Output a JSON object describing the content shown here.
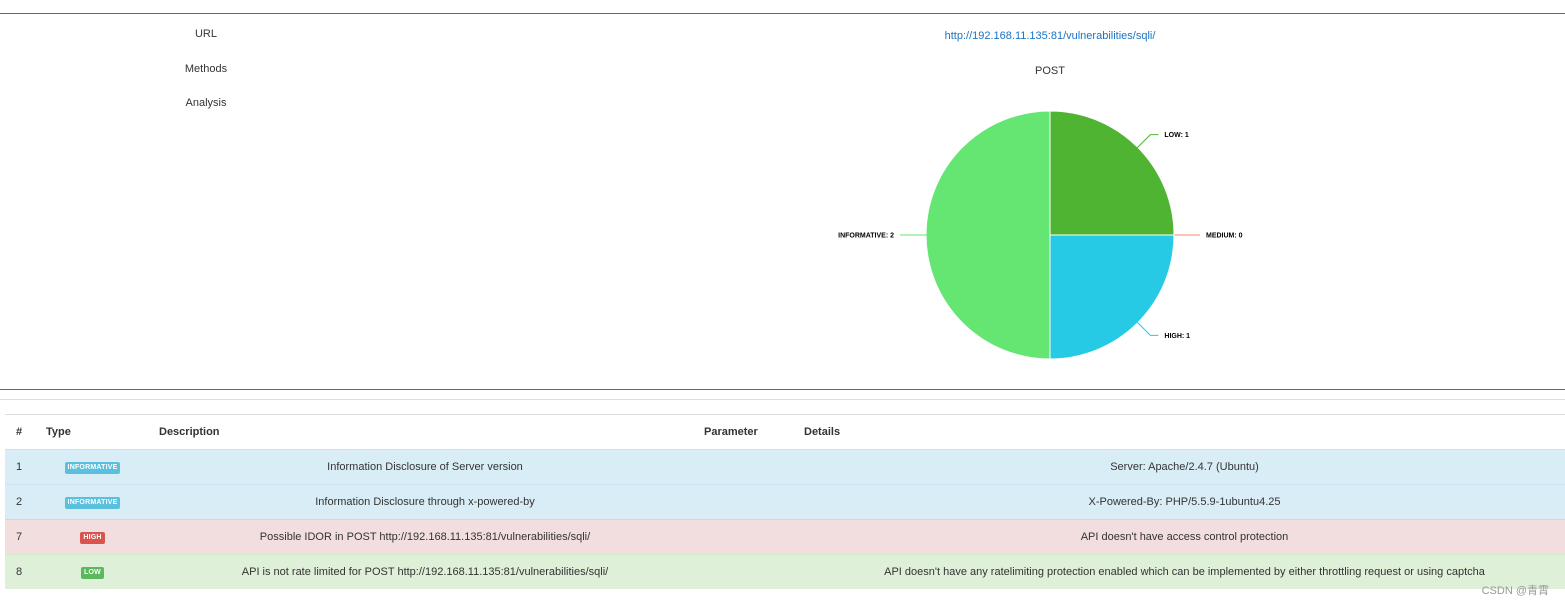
{
  "summary": {
    "labels": {
      "url": "URL",
      "methods": "Methods",
      "analysis": "Analysis"
    },
    "url": "http://192.168.11.135:81/vulnerabilities/sqli/",
    "method": "POST"
  },
  "chart_data": {
    "type": "pie",
    "slices": [
      {
        "label": "LOW",
        "value": 1,
        "color": "#4fb432"
      },
      {
        "label": "MEDIUM",
        "value": 0,
        "color": "#f38b70"
      },
      {
        "label": "HIGH",
        "value": 1,
        "color": "#27cae4"
      },
      {
        "label": "INFORMATIVE",
        "value": 2,
        "color": "#65e572"
      }
    ]
  },
  "table": {
    "headers": {
      "num": "#",
      "type": "Type",
      "description": "Description",
      "parameter": "Parameter",
      "details": "Details"
    },
    "rows": [
      {
        "num": "1",
        "type": "INFORMATIVE",
        "description": "Information Disclosure of Server version",
        "parameter": "",
        "details": "Server: Apache/2.4.7 (Ubuntu)"
      },
      {
        "num": "2",
        "type": "INFORMATIVE",
        "description": "Information Disclosure through x-powered-by",
        "parameter": "",
        "details": "X-Powered-By: PHP/5.5.9-1ubuntu4.25"
      },
      {
        "num": "7",
        "type": "HIGH",
        "description": "Possible IDOR in POST http://192.168.11.135:81/vulnerabilities/sqli/",
        "parameter": "",
        "details": "API doesn't have access control protection"
      },
      {
        "num": "8",
        "type": "LOW",
        "description": "API is not rate limited for POST http://192.168.11.135:81/vulnerabilities/sqli/",
        "parameter": "",
        "details": "API doesn't have any ratelimiting protection enabled which can be implemented by either throttling request or using captcha"
      }
    ]
  },
  "badge_colors": {
    "INFORMATIVE": "#5bc0de",
    "HIGH": "#d9534f",
    "LOW": "#5cb85c"
  },
  "watermark": "CSDN @青霄"
}
